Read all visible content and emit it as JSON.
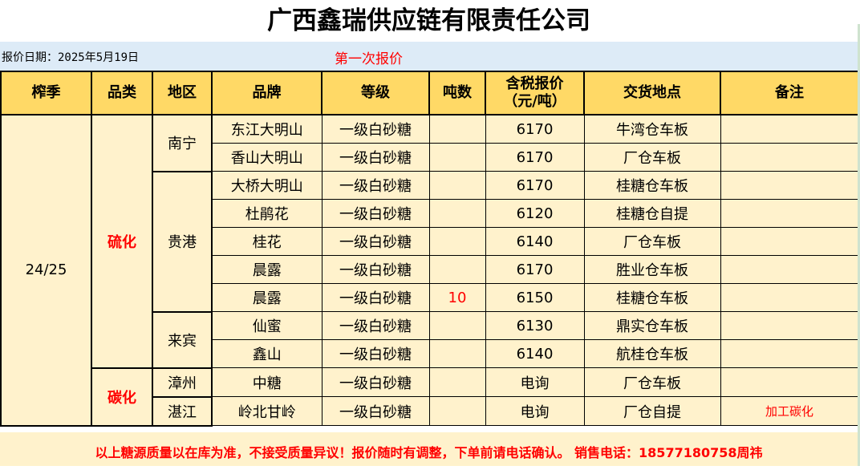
{
  "title": "广西鑫瑞供应链有限责任公司",
  "date_label": "报价日期：2025年5月19日",
  "round_label": "第一次报价",
  "headers": [
    "榨季",
    "品类",
    "地区",
    "品牌",
    "等级",
    "吨数",
    "含税报价\n（元/吨）",
    "交货地点",
    "备注"
  ],
  "season": "24/25",
  "categories": {
    "sulfurized": "硫化",
    "carbonated": "碳化"
  },
  "regions": {
    "nanning": "南宁",
    "guigang": "贵港",
    "laibin": "来宾",
    "zhangzhou": "漳州",
    "zhanjiang": "湛江"
  },
  "rows": [
    {
      "brand": "东江大明山",
      "grade": "一级白砂糖",
      "tons": "",
      "price": "6170",
      "delivery": "牛湾仓车板",
      "note": ""
    },
    {
      "brand": "香山大明山",
      "grade": "一级白砂糖",
      "tons": "",
      "price": "6170",
      "delivery": "厂仓车板",
      "note": ""
    },
    {
      "brand": "大桥大明山",
      "grade": "一级白砂糖",
      "tons": "",
      "price": "6170",
      "delivery": "桂糖仓车板",
      "note": ""
    },
    {
      "brand": "杜鹃花",
      "grade": "一级白砂糖",
      "tons": "",
      "price": "6120",
      "delivery": "桂糖仓自提",
      "note": ""
    },
    {
      "brand": "桂花",
      "grade": "一级白砂糖",
      "tons": "",
      "price": "6140",
      "delivery": "厂仓车板",
      "note": ""
    },
    {
      "brand": "晨露",
      "grade": "一级白砂糖",
      "tons": "",
      "price": "6170",
      "delivery": "胜业仓车板",
      "note": ""
    },
    {
      "brand": "晨露",
      "grade": "一级白砂糖",
      "tons": "10",
      "price": "6150",
      "delivery": "桂糖仓车板",
      "note": ""
    },
    {
      "brand": "仙蜜",
      "grade": "一级白砂糖",
      "tons": "",
      "price": "6130",
      "delivery": "鼎实仓车板",
      "note": ""
    },
    {
      "brand": "鑫山",
      "grade": "一级白砂糖",
      "tons": "",
      "price": "6140",
      "delivery": "航桂仓车板",
      "note": ""
    },
    {
      "brand": "中糖",
      "grade": "一级白砂糖",
      "tons": "",
      "price": "电询",
      "delivery": "厂仓车板",
      "note": ""
    },
    {
      "brand": "岭北甘岭",
      "grade": "一级白砂糖",
      "tons": "",
      "price": "电询",
      "delivery": "厂仓自提",
      "note": "加工碳化"
    }
  ],
  "footer": "以上糖源质量以在库为准，不接受质量异议！报价随时有调整，下单前请电话确认。 销售电话：18577180758周祎"
}
